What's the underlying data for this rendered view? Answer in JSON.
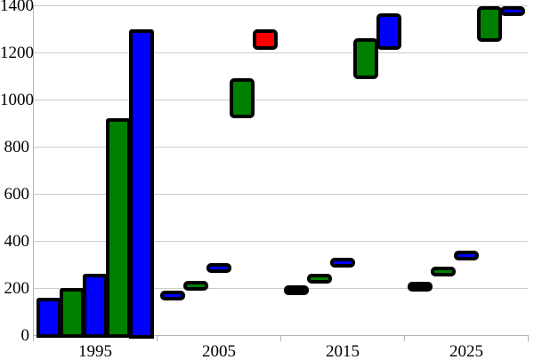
{
  "chart_data": {
    "type": "bar",
    "variant": "floating-range-bar-chart",
    "title": "",
    "xlabel": "",
    "ylabel": "",
    "ylim": [
      0,
      1400
    ],
    "yticks": [
      0,
      200,
      400,
      600,
      800,
      1000,
      1200,
      1400
    ],
    "categories": [
      "1995",
      "2005",
      "2015",
      "2025"
    ],
    "grid": true,
    "legend_position": "none",
    "colors": {
      "blue": "#0000FF",
      "green": "#008000",
      "red": "#FF0000",
      "black": "#000000",
      "bar_outline": "#000000",
      "gridline": "#CCCCCC",
      "axis": "#B5B5B5",
      "text": "#000000",
      "background": "#FFFFFF"
    },
    "groups": [
      {
        "category": "1995",
        "items": [
          {
            "color": "blue",
            "low": 0,
            "high": 160
          },
          {
            "color": "green",
            "low": 0,
            "high": 200
          },
          {
            "color": "blue",
            "low": 0,
            "high": 260
          },
          {
            "color": "green",
            "low": 0,
            "high": 920
          },
          {
            "color": "blue",
            "low": 0,
            "high": 1300
          }
        ]
      },
      {
        "category": "2005",
        "items": [
          {
            "color": "blue",
            "low": 155,
            "high": 190
          },
          {
            "color": "green",
            "low": 190,
            "high": 230
          },
          {
            "color": "blue",
            "low": 265,
            "high": 305
          },
          {
            "color": "green",
            "low": 920,
            "high": 1090
          },
          {
            "color": "red",
            "low": 1215,
            "high": 1300
          }
        ]
      },
      {
        "category": "2015",
        "items": [
          {
            "color": "black",
            "low": 170,
            "high": 210
          },
          {
            "color": "green",
            "low": 225,
            "high": 260
          },
          {
            "color": "blue",
            "low": 295,
            "high": 330
          },
          {
            "color": "green",
            "low": 1085,
            "high": 1260
          },
          {
            "color": "blue",
            "low": 1210,
            "high": 1365
          }
        ]
      },
      {
        "category": "2025",
        "items": [
          {
            "color": "black",
            "low": 190,
            "high": 225
          },
          {
            "color": "green",
            "low": 250,
            "high": 290
          },
          {
            "color": "blue",
            "low": 320,
            "high": 360
          },
          {
            "color": "green",
            "low": 1245,
            "high": 1395
          },
          {
            "color": "blue",
            "low": 1360,
            "high": 1395
          }
        ]
      }
    ]
  }
}
